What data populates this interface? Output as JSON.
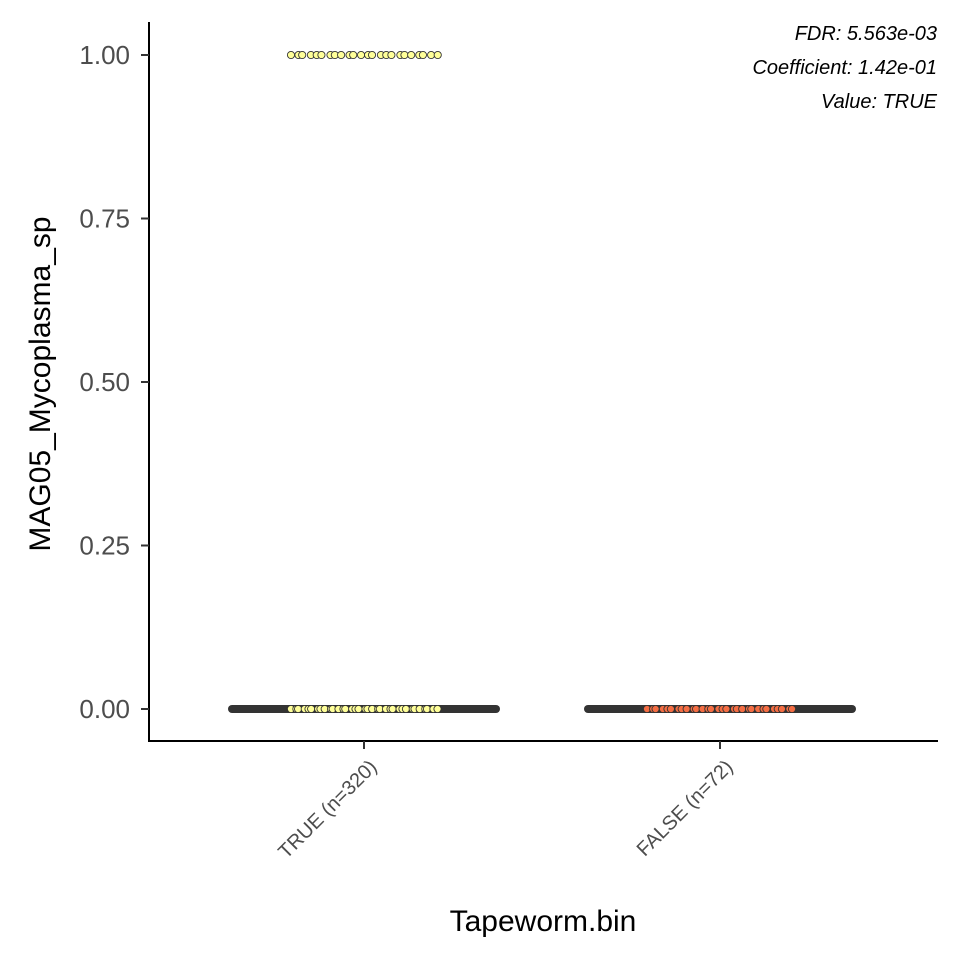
{
  "chart_data": {
    "type": "scatter",
    "xlabel": "Tapeworm.bin",
    "ylabel": "MAG05_Mycoplasma_sp",
    "categories": [
      "TRUE (n=320)",
      "FALSE (n=72)"
    ],
    "ylim": [
      -0.05,
      1.05
    ],
    "yticks": [
      0.0,
      0.25,
      0.5,
      0.75,
      1.0
    ],
    "ytick_labels": [
      "0.00",
      "0.25",
      "0.50",
      "0.75",
      "1.00"
    ],
    "series": [
      {
        "category": "TRUE (n=320)",
        "color": "#ffff99",
        "points": [
          {
            "y": 1.0,
            "count": 24
          },
          {
            "y": 0.0,
            "count": 35
          }
        ],
        "box": {
          "median": 0.0,
          "q1": 0.0,
          "q3": 0.0
        }
      },
      {
        "category": "FALSE (n=72)",
        "color": "#f46d43",
        "points": [
          {
            "y": 0.0,
            "count": 30
          }
        ],
        "box": {
          "median": 0.0,
          "q1": 0.0,
          "q3": 0.0
        }
      }
    ],
    "annotations": [
      "FDR: 5.563e-03",
      "Coefficient: 1.42e-01",
      "Value: TRUE"
    ],
    "grid": false,
    "legend": "none"
  }
}
